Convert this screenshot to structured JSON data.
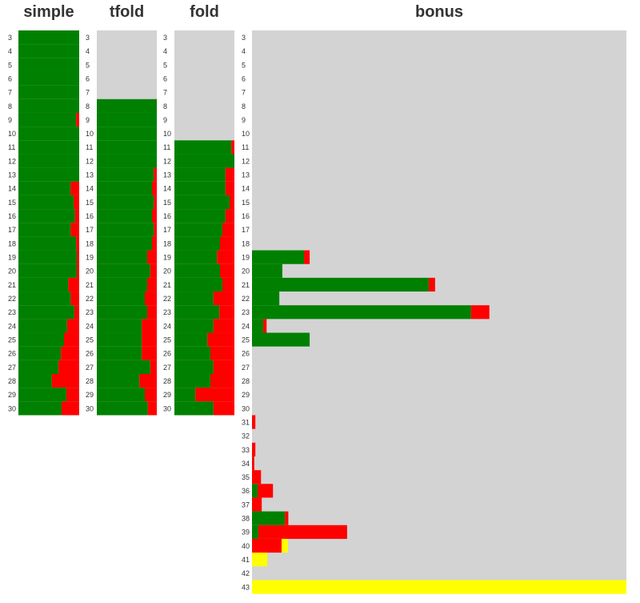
{
  "chart_data": [
    {
      "type": "hbar-stacked",
      "title": "simple",
      "xlim": [
        0,
        100
      ],
      "categories": [
        3,
        4,
        5,
        6,
        7,
        8,
        9,
        10,
        11,
        12,
        13,
        14,
        15,
        16,
        17,
        18,
        19,
        20,
        21,
        22,
        23,
        24,
        25,
        26,
        27,
        28,
        29,
        30
      ],
      "series": [
        {
          "color": "#008000",
          "values": [
            100,
            100,
            100,
            100,
            100,
            100,
            95,
            100,
            100,
            100,
            100,
            86,
            91,
            93,
            86,
            95,
            96,
            96,
            82,
            86,
            92,
            80,
            75,
            70,
            66,
            55,
            79,
            71
          ]
        },
        {
          "color": "#ff0000",
          "values": [
            0,
            0,
            0,
            0,
            0,
            0,
            5,
            0,
            0,
            0,
            0,
            14,
            9,
            7,
            14,
            5,
            4,
            4,
            18,
            14,
            8,
            20,
            25,
            30,
            34,
            45,
            21,
            29
          ]
        }
      ]
    },
    {
      "type": "hbar-stacked",
      "title": "tfold",
      "xlim": [
        0,
        100
      ],
      "categories": [
        3,
        4,
        5,
        6,
        7,
        8,
        9,
        10,
        11,
        12,
        13,
        14,
        15,
        16,
        17,
        18,
        19,
        20,
        21,
        22,
        23,
        24,
        25,
        26,
        27,
        28,
        29,
        30
      ],
      "series": [
        {
          "color": "#008000",
          "values": [
            0,
            0,
            0,
            0,
            0,
            100,
            100,
            100,
            100,
            100,
            95,
            92,
            95,
            92,
            95,
            92,
            84,
            89,
            84,
            80,
            84,
            75,
            75,
            75,
            89,
            71,
            80,
            85
          ]
        },
        {
          "color": "#ff0000",
          "values": [
            0,
            0,
            0,
            0,
            0,
            0,
            0,
            0,
            0,
            0,
            5,
            8,
            5,
            8,
            5,
            8,
            16,
            11,
            16,
            20,
            16,
            25,
            25,
            25,
            11,
            29,
            20,
            15
          ]
        }
      ]
    },
    {
      "type": "hbar-stacked",
      "title": "fold",
      "xlim": [
        0,
        100
      ],
      "categories": [
        3,
        4,
        5,
        6,
        7,
        8,
        9,
        10,
        11,
        12,
        13,
        14,
        15,
        16,
        17,
        18,
        19,
        20,
        21,
        22,
        23,
        24,
        25,
        26,
        27,
        28,
        29,
        30
      ],
      "series": [
        {
          "color": "#008000",
          "values": [
            0,
            0,
            0,
            0,
            0,
            0,
            0,
            0,
            95,
            100,
            85,
            85,
            92,
            85,
            80,
            76,
            71,
            76,
            80,
            65,
            75,
            65,
            55,
            60,
            65,
            60,
            35,
            65
          ]
        },
        {
          "color": "#ff0000",
          "values": [
            0,
            0,
            0,
            0,
            0,
            0,
            0,
            0,
            5,
            0,
            15,
            15,
            8,
            15,
            20,
            24,
            29,
            24,
            20,
            35,
            25,
            35,
            45,
            40,
            35,
            40,
            65,
            35
          ]
        }
      ]
    },
    {
      "type": "hbar-stacked",
      "title": "bonus",
      "xlim": [
        0,
        100
      ],
      "categories": [
        3,
        4,
        5,
        6,
        7,
        8,
        9,
        10,
        11,
        12,
        13,
        14,
        15,
        16,
        17,
        18,
        19,
        20,
        21,
        22,
        23,
        24,
        25,
        26,
        27,
        28,
        29,
        30,
        31,
        32,
        33,
        34,
        35,
        36,
        37,
        38,
        39,
        40,
        41,
        42,
        43
      ],
      "series": [
        {
          "color": "#008000",
          "values": [
            0,
            0,
            0,
            0,
            0,
            0,
            0,
            0,
            0,
            0,
            0,
            0,
            0,
            0,
            0,
            0,
            13.9,
            8.1,
            47.2,
            7.3,
            58.5,
            3.0,
            15.4,
            0,
            0,
            0,
            0,
            0,
            0,
            0,
            0,
            0,
            0,
            1.5,
            0,
            8.8,
            1.7,
            0,
            0,
            0,
            0
          ]
        },
        {
          "color": "#ff0000",
          "values": [
            0,
            0,
            0,
            0,
            0,
            0,
            0,
            0,
            0,
            0,
            0,
            0,
            0,
            0,
            0,
            0,
            1.5,
            0,
            1.7,
            0,
            4.9,
            0.9,
            0,
            0,
            0,
            0,
            0,
            0,
            0.9,
            0,
            0.9,
            0.6,
            2.4,
            4.1,
            2.6,
            0.9,
            23.7,
            7.9,
            0,
            0,
            0
          ]
        },
        {
          "color": "#ffff00",
          "values": [
            0,
            0,
            0,
            0,
            0,
            0,
            0,
            0,
            0,
            0,
            0,
            0,
            0,
            0,
            0,
            0,
            0,
            0,
            0,
            0,
            0,
            0,
            0,
            0,
            0,
            0,
            0,
            0,
            0,
            0,
            0,
            0,
            0,
            0,
            0,
            0,
            0,
            1.7,
            4.1,
            0,
            100
          ]
        }
      ]
    }
  ]
}
